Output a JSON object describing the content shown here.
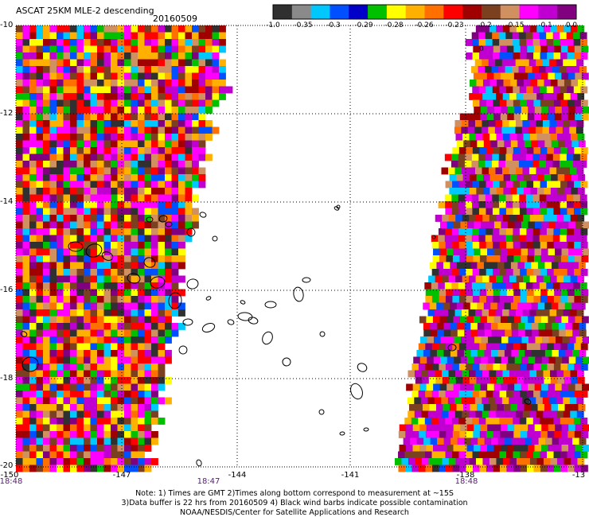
{
  "title": "ASCAT 25KM MLE-2 descending",
  "date": "20160509",
  "colorbar": {
    "labels": [
      "-1.0",
      "-0.35",
      "-0.3",
      "-0.29",
      "-0.28",
      "-0.26",
      "-0.23",
      "-0.2",
      "-0.15",
      "-0.1",
      "0.0"
    ],
    "colors": [
      "#303030",
      "#8a8a8a",
      "#00c8ff",
      "#0050ff",
      "#0000c8",
      "#00c000",
      "#ffff00",
      "#ffb000",
      "#ff7000",
      "#ff0000",
      "#a00000",
      "#7a4020",
      "#d09060",
      "#ff00ff",
      "#c000d0",
      "#800080"
    ]
  },
  "axes": {
    "y_ticks": [
      "-10",
      "-12",
      "-14",
      "-16",
      "-18",
      "-20"
    ],
    "x_ticks": [
      "-150",
      "-147",
      "-144",
      "-141",
      "-138",
      "-13"
    ],
    "x_times": [
      "18:48",
      "18:47",
      "18:48"
    ]
  },
  "stray_label": "0",
  "notes": [
    "Note: 1) Times are GMT 2)Times along bottom correspond to measurement at ~15S",
    "3)Data buffer is 22 hrs from 20160509 4) Black wind barbs indicate possible contamination",
    "NOAA/NESDIS/Center for Satellite Applications and Research"
  ]
}
